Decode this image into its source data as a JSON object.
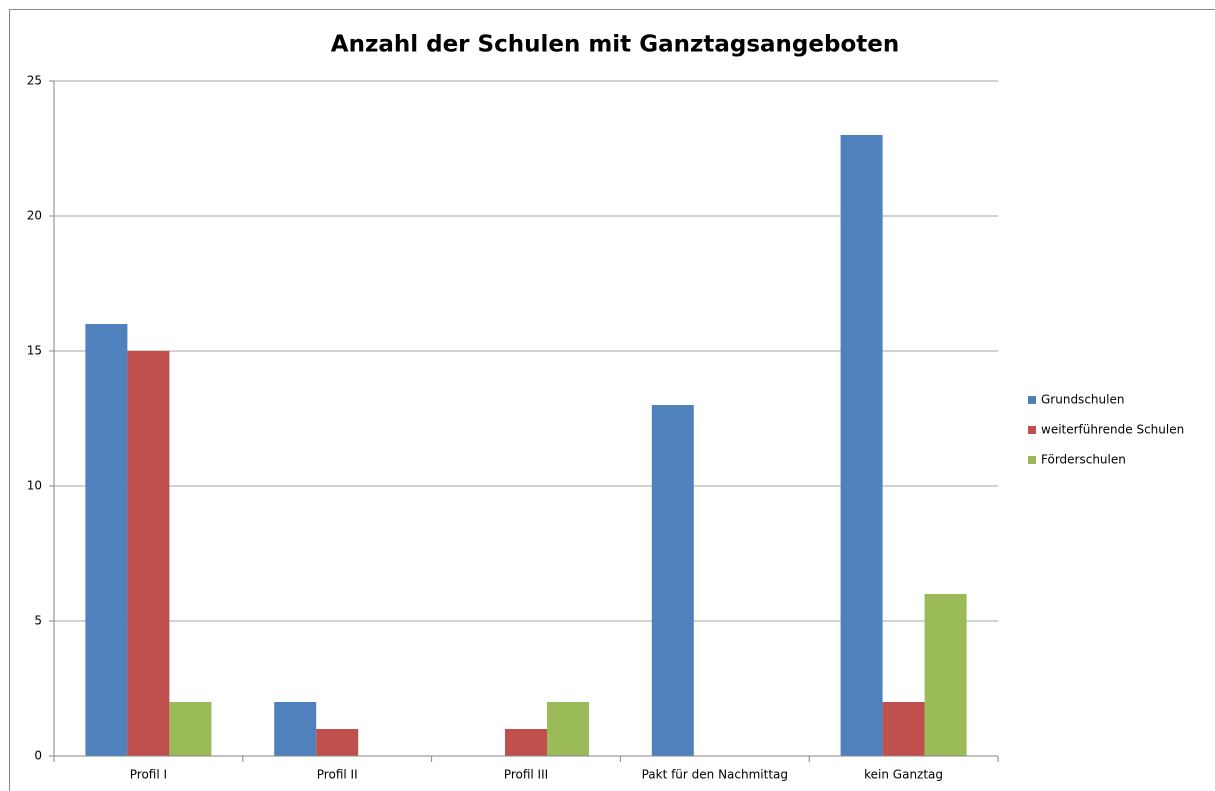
{
  "chart_data": {
    "type": "bar",
    "title": "Anzahl der Schulen mit Ganztagsangeboten",
    "categories": [
      "Profil I",
      "Profil II",
      "Profil III",
      "Pakt für den Nachmittag",
      "kein Ganztag"
    ],
    "series": [
      {
        "name": "Grundschulen",
        "color": "#4f81bd",
        "values": [
          16,
          2,
          0,
          13,
          23
        ]
      },
      {
        "name": "weiterführende Schulen",
        "color": "#c0504d",
        "values": [
          15,
          1,
          1,
          0,
          2
        ]
      },
      {
        "name": "Förderschulen",
        "color": "#9bbb59",
        "values": [
          2,
          0,
          2,
          0,
          6
        ]
      }
    ],
    "ylim": [
      0,
      25
    ],
    "yticks": [
      0,
      5,
      10,
      15,
      20,
      25
    ],
    "grid": true,
    "legend": "right"
  }
}
